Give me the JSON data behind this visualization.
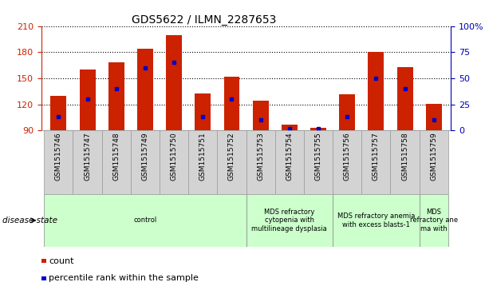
{
  "title": "GDS5622 / ILMN_2287653",
  "samples": [
    "GSM1515746",
    "GSM1515747",
    "GSM1515748",
    "GSM1515749",
    "GSM1515750",
    "GSM1515751",
    "GSM1515752",
    "GSM1515753",
    "GSM1515754",
    "GSM1515755",
    "GSM1515756",
    "GSM1515757",
    "GSM1515758",
    "GSM1515759"
  ],
  "counts": [
    130,
    160,
    168,
    184,
    200,
    133,
    152,
    124,
    97,
    93,
    132,
    180,
    163,
    121
  ],
  "percentile_ranks": [
    13,
    30,
    40,
    60,
    65,
    13,
    30,
    10,
    2,
    2,
    13,
    50,
    40,
    10
  ],
  "ymin": 90,
  "ymax": 210,
  "yleft_ticks": [
    90,
    120,
    150,
    180,
    210
  ],
  "yright_ticks": [
    0,
    25,
    50,
    75,
    100
  ],
  "bar_color": "#cc2200",
  "dot_color": "#0000cc",
  "left_axis_color": "#cc2200",
  "right_axis_color": "#0000bb",
  "group_boundaries": [
    {
      "label": "control",
      "start": 0,
      "end": 6,
      "color": "#ccffcc"
    },
    {
      "label": "MDS refractory\ncytopenia with\nmultilineage dysplasia",
      "start": 7,
      "end": 9,
      "color": "#ccffcc"
    },
    {
      "label": "MDS refractory anemia\nwith excess blasts-1",
      "start": 10,
      "end": 12,
      "color": "#ccffcc"
    },
    {
      "label": "MDS\nrefractory ane\nma with",
      "start": 13,
      "end": 13,
      "color": "#ccffcc"
    }
  ],
  "disease_state_label": "disease state",
  "legend_items": [
    {
      "label": "count",
      "color": "#cc2200"
    },
    {
      "label": "percentile rank within the sample",
      "color": "#0000cc"
    }
  ],
  "xtick_bg": "#d3d3d3"
}
